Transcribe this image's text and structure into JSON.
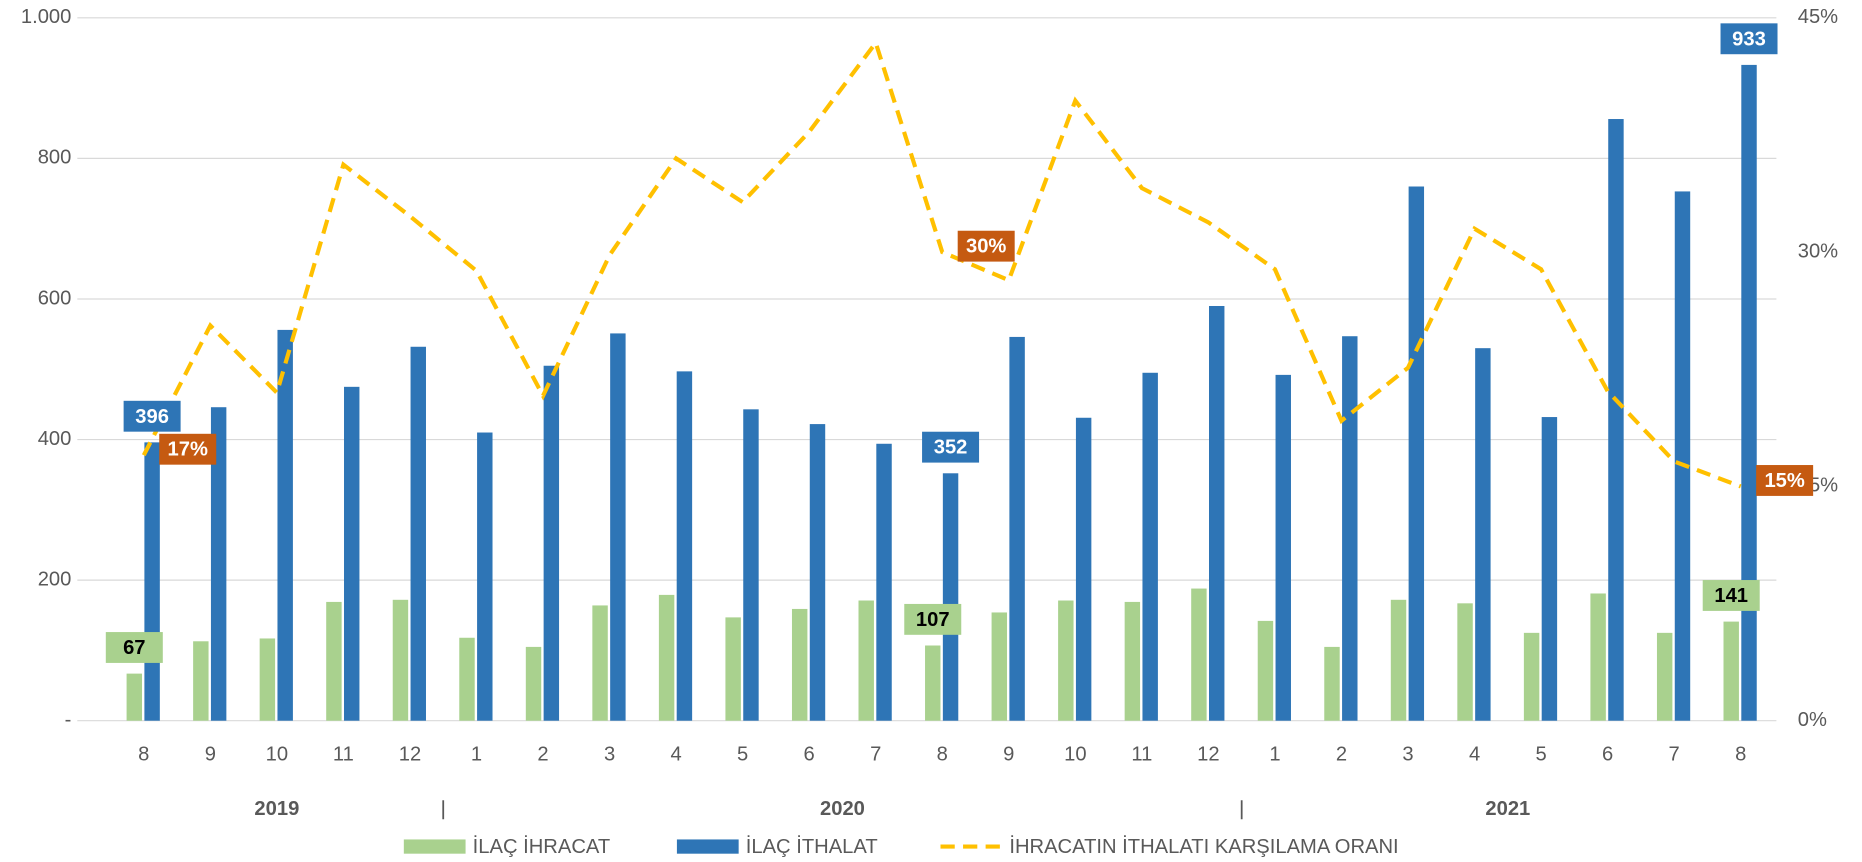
{
  "chart_data": {
    "type": "bar",
    "categories": [
      "8",
      "9",
      "10",
      "11",
      "12",
      "1",
      "2",
      "3",
      "4",
      "5",
      "6",
      "7",
      "8",
      "9",
      "10",
      "11",
      "12",
      "1",
      "2",
      "3",
      "4",
      "5",
      "6",
      "7",
      "8"
    ],
    "year_groups": [
      {
        "label": "2019",
        "count": 5
      },
      {
        "label": "2020",
        "count": 12
      },
      {
        "label": "2021",
        "count": 8
      }
    ],
    "series": [
      {
        "name": "İLAÇ İHRACAT",
        "color": "#a9d18e",
        "values": [
          67,
          113,
          117,
          169,
          172,
          118,
          105,
          164,
          179,
          147,
          159,
          171,
          107,
          154,
          171,
          169,
          188,
          142,
          105,
          172,
          167,
          125,
          181,
          125,
          141
        ],
        "value_labels": [
          "67",
          null,
          null,
          null,
          null,
          null,
          null,
          null,
          null,
          null,
          null,
          null,
          "107",
          null,
          null,
          null,
          null,
          null,
          null,
          null,
          null,
          null,
          null,
          null,
          "141"
        ]
      },
      {
        "name": "İLAÇ İTHALAT",
        "color": "#2e75b6",
        "values": [
          396,
          446,
          556,
          475,
          532,
          410,
          505,
          551,
          497,
          443,
          422,
          394,
          352,
          546,
          431,
          495,
          590,
          492,
          547,
          760,
          530,
          432,
          856,
          753,
          933
        ],
        "value_labels": [
          "396",
          null,
          null,
          null,
          null,
          null,
          null,
          null,
          null,
          null,
          null,
          null,
          "352",
          null,
          null,
          null,
          null,
          null,
          null,
          null,
          null,
          null,
          null,
          null,
          "933"
        ]
      },
      {
        "name": "İHRACATIN İTHALATI KARŞILAMA ORANI",
        "color": "#ffc000",
        "type": "line",
        "axis": "y2",
        "label_color": "#c55a11",
        "values": [
          17,
          25.3,
          21.0,
          35.6,
          32.3,
          28.8,
          20.8,
          29.8,
          36.0,
          33.2,
          37.7,
          43.4,
          30,
          28.2,
          39.7,
          34.1,
          31.9,
          28.9,
          19.2,
          22.6,
          31.5,
          28.9,
          21.1,
          16.6,
          15
        ],
        "value_labels": [
          "17%",
          null,
          null,
          null,
          null,
          null,
          null,
          null,
          null,
          null,
          null,
          null,
          "30%",
          null,
          null,
          null,
          null,
          null,
          null,
          null,
          null,
          null,
          null,
          null,
          "15%"
        ]
      }
    ],
    "ylim": [
      0,
      1000
    ],
    "yticks": [
      {
        "value": 0,
        "label": "-"
      },
      200,
      400,
      600,
      800,
      {
        "value": 1000,
        "label": "1.000"
      }
    ],
    "y2lim": [
      0,
      45
    ],
    "y2ticks": [
      {
        "value": 0,
        "label": "0%"
      },
      {
        "value": 15,
        "label": "15%"
      },
      {
        "value": 30,
        "label": "30%"
      },
      {
        "value": 45,
        "label": "45%"
      }
    ],
    "grid": true,
    "legend": "bottom"
  }
}
